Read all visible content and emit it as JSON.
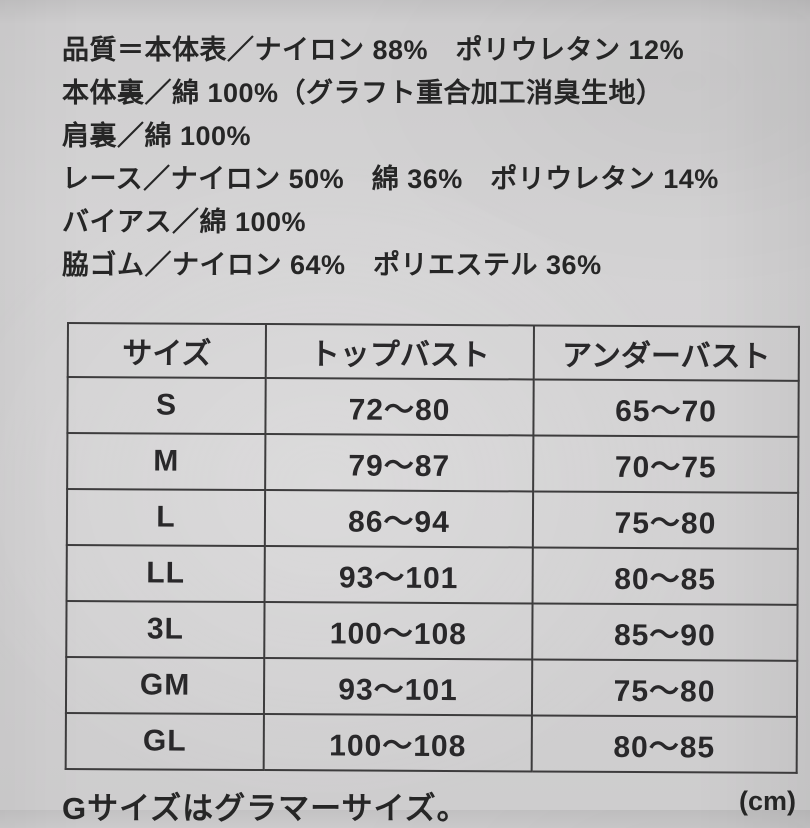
{
  "page": {
    "paper_color": "#d2d1d2",
    "text_color": "#262626",
    "table_line_color": "#3d3c3d"
  },
  "composition": {
    "lines": [
      "品質＝本体表／ナイロン 88%　ポリウレタン 12%",
      "本体裏／綿 100%（グラフト重合加工消臭生地）",
      "肩裏／綿 100%",
      "レース／ナイロン 50%　綿 36%　ポリウレタン 14%",
      "バイアス／綿 100%",
      "脇ゴム／ナイロン 64%　ポリエステル 36%"
    ]
  },
  "size_table": {
    "headers": {
      "size": "サイズ",
      "top_bust": "トップバスト",
      "under_bust": "アンダーバスト"
    },
    "rows": [
      {
        "size": "S",
        "top_bust": "72〜80",
        "under_bust": "65〜70"
      },
      {
        "size": "M",
        "top_bust": "79〜87",
        "under_bust": "70〜75"
      },
      {
        "size": "L",
        "top_bust": "86〜94",
        "under_bust": "75〜80"
      },
      {
        "size": "LL",
        "top_bust": "93〜101",
        "under_bust": "80〜85"
      },
      {
        "size": "3L",
        "top_bust": "100〜108",
        "under_bust": "85〜90"
      },
      {
        "size": "GM",
        "top_bust": "93〜101",
        "under_bust": "75〜80"
      },
      {
        "size": "GL",
        "top_bust": "100〜108",
        "under_bust": "80〜85"
      }
    ]
  },
  "footer": {
    "note": "Gサイズはグラマーサイズ。",
    "unit": "(cm)"
  }
}
